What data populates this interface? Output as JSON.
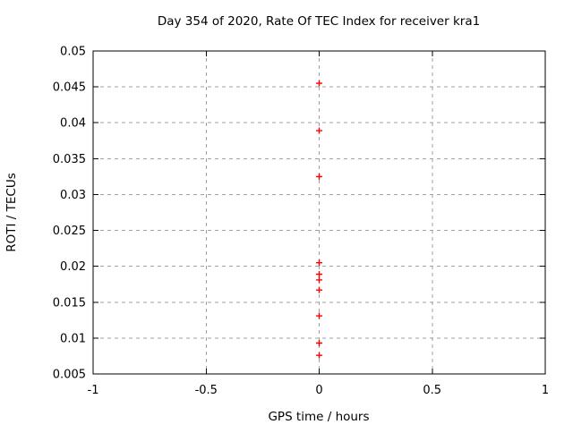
{
  "page": {
    "background": "#ffffff"
  },
  "chart_data": {
    "type": "scatter",
    "title": "Day 354 of 2020, Rate Of TEC Index for receiver kra1",
    "xlabel": "GPS time / hours",
    "ylabel": "ROTI / TECUs",
    "xlim": [
      -1,
      1
    ],
    "ylim": [
      0.005,
      0.05
    ],
    "xticks": [
      -1,
      -0.5,
      0,
      0.5,
      1
    ],
    "xtick_labels": [
      "-1",
      "-0.5",
      "0",
      "0.5",
      "1"
    ],
    "yticks": [
      0.005,
      0.01,
      0.015,
      0.02,
      0.025,
      0.03,
      0.035,
      0.04,
      0.045,
      0.05
    ],
    "ytick_labels": [
      "0.005",
      "0.01",
      "0.015",
      "0.02",
      "0.025",
      "0.03",
      "0.035",
      "0.04",
      "0.045",
      "0.05"
    ],
    "grid": true,
    "legend": "none",
    "colors": {
      "marker": "#ff0000",
      "grid": "#a0a0a0",
      "axis": "#000000",
      "text": "#000000"
    },
    "series": [
      {
        "name": "ROTI",
        "marker": "plus",
        "color": "#ff0000",
        "x": [
          0,
          0,
          0,
          0,
          0,
          0,
          0,
          0,
          0,
          0
        ],
        "y": [
          0.0455,
          0.0389,
          0.0325,
          0.0205,
          0.0189,
          0.0181,
          0.0167,
          0.0131,
          0.0093,
          0.0076
        ]
      }
    ]
  }
}
